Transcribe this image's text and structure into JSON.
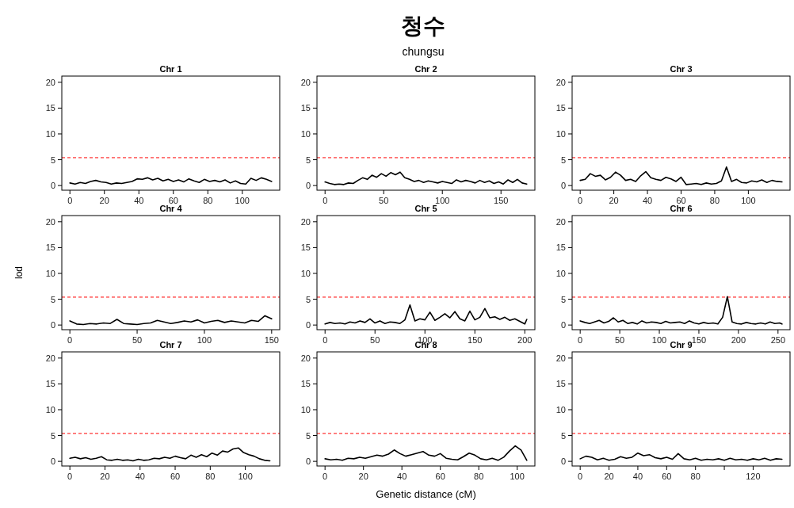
{
  "chart_data": [
    {
      "type": "line",
      "title": "Chr 1",
      "annotations": [
        "청수",
        "chungsu"
      ],
      "x": [
        0,
        3,
        6,
        9,
        12,
        15,
        18,
        21,
        24,
        27,
        30,
        33,
        36,
        39,
        42,
        45,
        48,
        51,
        54,
        57,
        60,
        63,
        66,
        69,
        72,
        75,
        78,
        81,
        84,
        87,
        90,
        93,
        96,
        99,
        102,
        105,
        108,
        111,
        114,
        117
      ],
      "series": [
        {
          "color": "#000000",
          "values": [
            0.5,
            0.3,
            0.6,
            0.4,
            0.8,
            1.0,
            0.7,
            0.6,
            0.3,
            0.5,
            0.4,
            0.6,
            0.8,
            1.3,
            1.2,
            1.5,
            1.1,
            1.4,
            0.9,
            1.2,
            0.8,
            1.1,
            0.7,
            1.3,
            0.9,
            0.6,
            1.2,
            0.8,
            1.0,
            0.7,
            1.1,
            0.5,
            0.9,
            0.4,
            0.3,
            1.4,
            1.0,
            1.5,
            1.2,
            0.8
          ]
        }
      ],
      "xlim": [
        -4.7,
        121.7
      ],
      "xticks": [
        0,
        20,
        40,
        60,
        80,
        100
      ],
      "ylim": [
        -0.9,
        21.2
      ],
      "yticks": [
        0,
        5,
        10,
        15,
        20
      ],
      "ref_lines": [
        {
          "axis": "y",
          "value": 5.4,
          "color": "#ff0000",
          "line_style": "dashed"
        }
      ]
    },
    {
      "type": "line",
      "title": "Chr 2",
      "x": [
        0,
        4,
        8,
        12,
        16,
        20,
        24,
        28,
        32,
        36,
        40,
        44,
        48,
        52,
        56,
        60,
        64,
        68,
        72,
        76,
        80,
        84,
        88,
        92,
        96,
        100,
        104,
        108,
        112,
        116,
        120,
        124,
        128,
        132,
        136,
        140,
        144,
        148,
        152,
        156,
        160,
        164,
        168,
        172
      ],
      "series": [
        {
          "color": "#000000",
          "values": [
            0.7,
            0.4,
            0.2,
            0.3,
            0.2,
            0.5,
            0.4,
            1.0,
            1.5,
            1.2,
            2.0,
            1.6,
            2.3,
            1.8,
            2.5,
            2.1,
            2.6,
            1.5,
            1.2,
            0.8,
            1.0,
            0.6,
            0.9,
            0.7,
            0.5,
            0.8,
            0.6,
            0.4,
            1.1,
            0.7,
            1.0,
            0.8,
            0.5,
            1.0,
            0.6,
            0.9,
            0.4,
            0.7,
            0.3,
            1.1,
            0.6,
            1.2,
            0.5,
            0.3
          ]
        }
      ],
      "xlim": [
        -6.9,
        178.9
      ],
      "xticks": [
        0,
        50,
        100,
        150
      ],
      "ylim": [
        -0.9,
        21.2
      ],
      "yticks": [
        0,
        5,
        10,
        15,
        20
      ],
      "ref_lines": [
        {
          "axis": "y",
          "value": 5.4,
          "color": "#ff0000",
          "line_style": "dashed"
        }
      ]
    },
    {
      "type": "line",
      "title": "Chr 3",
      "x": [
        0,
        3,
        6,
        9,
        12,
        15,
        18,
        21,
        24,
        27,
        30,
        33,
        36,
        39,
        42,
        45,
        48,
        51,
        54,
        57,
        60,
        63,
        66,
        69,
        72,
        75,
        78,
        81,
        84,
        87,
        90,
        93,
        96,
        99,
        102,
        105,
        108,
        111,
        114,
        117,
        120
      ],
      "series": [
        {
          "color": "#000000",
          "values": [
            1.0,
            1.2,
            2.3,
            1.8,
            2.0,
            1.1,
            1.6,
            2.6,
            2.0,
            1.0,
            1.2,
            0.8,
            1.9,
            2.7,
            1.5,
            1.2,
            1.0,
            1.6,
            1.3,
            0.8,
            1.6,
            0.2,
            0.3,
            0.4,
            0.2,
            0.5,
            0.3,
            0.4,
            0.9,
            3.6,
            0.8,
            1.2,
            0.6,
            0.5,
            0.9,
            0.7,
            1.1,
            0.6,
            1.0,
            0.8,
            0.7
          ]
        }
      ],
      "xlim": [
        -4.8,
        124.8
      ],
      "xticks": [
        0,
        20,
        40,
        60,
        80,
        100
      ],
      "ylim": [
        -0.9,
        21.2
      ],
      "yticks": [
        0,
        5,
        10,
        15,
        20
      ],
      "ref_lines": [
        {
          "axis": "y",
          "value": 5.4,
          "color": "#ff0000",
          "line_style": "dashed"
        }
      ]
    },
    {
      "type": "line",
      "title": "Chr 4",
      "ylabel": "lod",
      "x": [
        0,
        5,
        10,
        15,
        20,
        25,
        30,
        35,
        40,
        45,
        50,
        55,
        60,
        65,
        70,
        75,
        80,
        85,
        90,
        95,
        100,
        105,
        110,
        115,
        120,
        125,
        130,
        135,
        140,
        145,
        150
      ],
      "series": [
        {
          "color": "#000000",
          "values": [
            0.8,
            0.2,
            0.1,
            0.3,
            0.2,
            0.4,
            0.3,
            1.1,
            0.3,
            0.2,
            0.1,
            0.3,
            0.4,
            0.9,
            0.6,
            0.3,
            0.5,
            0.8,
            0.6,
            1.0,
            0.4,
            0.7,
            0.9,
            0.5,
            0.8,
            0.6,
            0.4,
            0.9,
            0.7,
            1.8,
            1.2
          ]
        }
      ],
      "xlim": [
        -6,
        156
      ],
      "xticks": [
        0,
        50,
        100,
        150
      ],
      "ylim": [
        -0.9,
        21.2
      ],
      "yticks": [
        0,
        5,
        10,
        15,
        20
      ],
      "ref_lines": [
        {
          "axis": "y",
          "value": 5.4,
          "color": "#ff0000",
          "line_style": "dashed"
        }
      ]
    },
    {
      "type": "line",
      "title": "Chr 5",
      "x": [
        0,
        5,
        10,
        15,
        20,
        25,
        30,
        35,
        40,
        45,
        50,
        55,
        60,
        65,
        70,
        75,
        80,
        85,
        90,
        95,
        100,
        105,
        110,
        115,
        120,
        125,
        130,
        135,
        140,
        145,
        150,
        155,
        160,
        165,
        170,
        175,
        180,
        185,
        190,
        195,
        200,
        202
      ],
      "series": [
        {
          "color": "#000000",
          "values": [
            0.2,
            0.5,
            0.3,
            0.4,
            0.2,
            0.6,
            0.4,
            0.8,
            0.5,
            1.2,
            0.4,
            0.8,
            0.3,
            0.6,
            0.5,
            0.3,
            1.0,
            3.9,
            0.8,
            1.2,
            1.0,
            2.5,
            0.9,
            1.5,
            2.2,
            1.4,
            2.6,
            1.2,
            0.8,
            2.7,
            1.0,
            1.5,
            3.2,
            1.4,
            1.6,
            1.1,
            1.5,
            0.9,
            1.2,
            0.7,
            0.2,
            1.1
          ]
        }
      ],
      "xlim": [
        -8.1,
        210.1
      ],
      "xticks": [
        0,
        50,
        100,
        150,
        200
      ],
      "ylim": [
        -0.9,
        21.2
      ],
      "yticks": [
        0,
        5,
        10,
        15,
        20
      ],
      "ref_lines": [
        {
          "axis": "y",
          "value": 5.4,
          "color": "#ff0000",
          "line_style": "dashed"
        }
      ]
    },
    {
      "type": "line",
      "title": "Chr 6",
      "x": [
        0,
        6,
        12,
        18,
        24,
        30,
        36,
        42,
        48,
        54,
        60,
        66,
        72,
        78,
        84,
        90,
        96,
        102,
        108,
        114,
        120,
        126,
        132,
        138,
        144,
        150,
        156,
        162,
        168,
        174,
        180,
        186,
        192,
        198,
        204,
        210,
        216,
        222,
        228,
        234,
        240,
        246,
        252,
        255
      ],
      "series": [
        {
          "color": "#000000",
          "values": [
            0.8,
            0.5,
            0.3,
            0.6,
            0.9,
            0.4,
            0.7,
            1.4,
            0.6,
            0.9,
            0.3,
            0.5,
            0.2,
            0.8,
            0.4,
            0.6,
            0.5,
            0.3,
            0.7,
            0.4,
            0.5,
            0.6,
            0.3,
            0.8,
            0.4,
            0.2,
            0.5,
            0.3,
            0.4,
            0.2,
            1.5,
            5.5,
            0.6,
            0.3,
            0.2,
            0.5,
            0.3,
            0.2,
            0.4,
            0.2,
            0.6,
            0.3,
            0.4,
            0.2
          ]
        }
      ],
      "xlim": [
        -10.2,
        265.2
      ],
      "xticks": [
        0,
        50,
        100,
        150,
        200,
        250
      ],
      "ylim": [
        -0.9,
        21.2
      ],
      "yticks": [
        0,
        5,
        10,
        15,
        20
      ],
      "ref_lines": [
        {
          "axis": "y",
          "value": 5.4,
          "color": "#ff0000",
          "line_style": "dashed"
        }
      ]
    },
    {
      "type": "line",
      "title": "Chr 7",
      "x": [
        0,
        3,
        6,
        9,
        12,
        15,
        18,
        21,
        24,
        27,
        30,
        33,
        36,
        39,
        42,
        45,
        48,
        51,
        54,
        57,
        60,
        63,
        66,
        69,
        72,
        75,
        78,
        81,
        84,
        87,
        90,
        93,
        96,
        99,
        102,
        105,
        108,
        111,
        114
      ],
      "series": [
        {
          "color": "#000000",
          "values": [
            0.6,
            0.8,
            0.5,
            0.7,
            0.4,
            0.6,
            0.9,
            0.3,
            0.2,
            0.4,
            0.2,
            0.3,
            0.1,
            0.4,
            0.2,
            0.3,
            0.6,
            0.5,
            0.8,
            0.6,
            1.0,
            0.7,
            0.5,
            1.2,
            0.8,
            1.3,
            0.9,
            1.6,
            1.2,
            2.0,
            1.8,
            2.4,
            2.6,
            1.7,
            1.3,
            1.0,
            0.5,
            0.2,
            0.1
          ]
        }
      ],
      "xlim": [
        -4.6,
        119.6
      ],
      "xticks": [
        0,
        20,
        40,
        60,
        80,
        100
      ],
      "ylim": [
        -0.9,
        21.2
      ],
      "yticks": [
        0,
        5,
        10,
        15,
        20
      ],
      "ref_lines": [
        {
          "axis": "y",
          "value": 5.4,
          "color": "#ff0000",
          "line_style": "dashed"
        }
      ]
    },
    {
      "type": "line",
      "title": "Chr 8",
      "xlabel": "Genetic distance (cM)",
      "x": [
        0,
        3,
        6,
        9,
        12,
        15,
        18,
        21,
        24,
        27,
        30,
        33,
        36,
        39,
        42,
        45,
        48,
        51,
        54,
        57,
        60,
        63,
        66,
        69,
        72,
        75,
        78,
        81,
        84,
        87,
        90,
        93,
        96,
        99,
        102,
        105
      ],
      "series": [
        {
          "color": "#000000",
          "values": [
            0.5,
            0.3,
            0.4,
            0.2,
            0.6,
            0.5,
            0.8,
            0.6,
            0.9,
            1.2,
            1.0,
            1.4,
            2.2,
            1.5,
            1.0,
            1.3,
            1.6,
            1.9,
            1.2,
            1.0,
            1.5,
            0.6,
            0.4,
            0.3,
            0.9,
            1.6,
            1.2,
            0.5,
            0.3,
            0.6,
            0.2,
            0.8,
            2.0,
            3.0,
            2.2,
            0.2
          ]
        }
      ],
      "xlim": [
        -4.2,
        109.2
      ],
      "xticks": [
        0,
        20,
        40,
        60,
        80,
        100
      ],
      "ylim": [
        -0.9,
        21.2
      ],
      "yticks": [
        0,
        5,
        10,
        15,
        20
      ],
      "ref_lines": [
        {
          "axis": "y",
          "value": 5.4,
          "color": "#ff0000",
          "line_style": "dashed"
        }
      ]
    },
    {
      "type": "line",
      "title": "Chr 9",
      "x": [
        0,
        4,
        8,
        12,
        16,
        20,
        24,
        28,
        32,
        36,
        40,
        44,
        48,
        52,
        56,
        60,
        64,
        68,
        72,
        76,
        80,
        84,
        88,
        92,
        96,
        100,
        104,
        108,
        112,
        116,
        120,
        124,
        128,
        132,
        136,
        140
      ],
      "series": [
        {
          "color": "#000000",
          "values": [
            0.5,
            1.0,
            0.8,
            0.3,
            0.6,
            0.2,
            0.4,
            0.9,
            0.6,
            0.8,
            1.6,
            1.1,
            1.3,
            0.7,
            0.5,
            0.8,
            0.4,
            1.5,
            0.5,
            0.3,
            0.6,
            0.2,
            0.4,
            0.3,
            0.5,
            0.2,
            0.6,
            0.3,
            0.4,
            0.2,
            0.5,
            0.3,
            0.6,
            0.2,
            0.5,
            0.4
          ]
        }
      ],
      "xlim": [
        -5.6,
        145.6
      ],
      "xticks": [
        0,
        20,
        40,
        60,
        80,
        {
          "value": 100,
          "label": null
        },
        120
      ],
      "ylim": [
        -0.9,
        21.2
      ],
      "yticks": [
        0,
        5,
        10,
        15,
        20
      ],
      "ref_lines": [
        {
          "axis": "y",
          "value": 5.4,
          "color": "#ff0000",
          "line_style": "dashed"
        }
      ]
    }
  ]
}
